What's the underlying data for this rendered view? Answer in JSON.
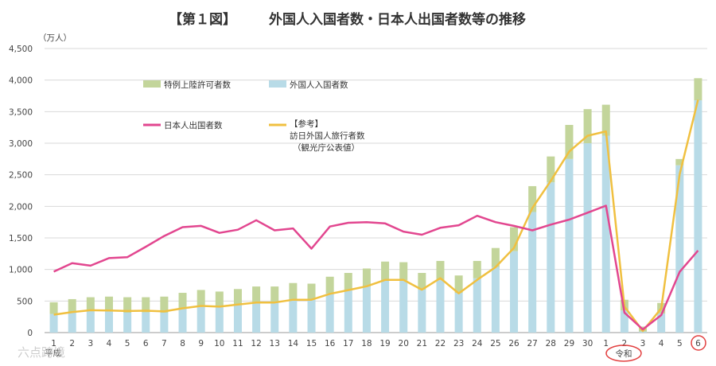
{
  "chart_data": {
    "type": "bar",
    "title_prefix": "【第１図】",
    "title": "外国人入国者数・日本人出国者数等の推移",
    "unit_label": "（万人）",
    "ylim": [
      0,
      4500
    ],
    "yticks": [
      "0",
      "500",
      "1,000",
      "1,500",
      "2,000",
      "2,500",
      "3,000",
      "3,500",
      "4,000",
      "4,500"
    ],
    "categories": [
      "1",
      "2",
      "3",
      "4",
      "5",
      "6",
      "7",
      "8",
      "9",
      "10",
      "11",
      "12",
      "13",
      "14",
      "15",
      "16",
      "17",
      "18",
      "19",
      "20",
      "21",
      "22",
      "23",
      "24",
      "25",
      "26",
      "27",
      "28",
      "29",
      "30",
      "1",
      "2",
      "3",
      "4",
      "5",
      "6"
    ],
    "era_labels": {
      "heisei": "平成",
      "reiwa": "令和"
    },
    "colors": {
      "foreign_entrants": "#b8dbe7",
      "special_landing": "#c3d59b",
      "japanese_departures": "#e2468f",
      "visitor_arrivals": "#f0c040",
      "highlight": "#e24040",
      "grid": "#d9d9d9"
    },
    "series": [
      {
        "name": "外国人入国者数",
        "kind": "bar",
        "values": [
          295,
          320,
          340,
          335,
          315,
          320,
          315,
          380,
          420,
          400,
          440,
          480,
          470,
          520,
          520,
          620,
          670,
          730,
          830,
          830,
          680,
          830,
          630,
          860,
          1040,
          1290,
          1910,
          2380,
          2750,
          3000,
          3120,
          350,
          15,
          300,
          2650,
          3680
        ]
      },
      {
        "name": "特例上陸許可者数",
        "kind": "bar_stack",
        "values": [
          185,
          210,
          220,
          235,
          245,
          240,
          255,
          250,
          255,
          250,
          250,
          250,
          260,
          265,
          255,
          265,
          275,
          285,
          295,
          285,
          265,
          305,
          275,
          275,
          300,
          380,
          410,
          410,
          540,
          540,
          490,
          170,
          80,
          170,
          100,
          350
        ]
      },
      {
        "name": "日本人出国者数",
        "kind": "line",
        "values": [
          966,
          1100,
          1060,
          1180,
          1195,
          1360,
          1530,
          1670,
          1690,
          1580,
          1630,
          1780,
          1620,
          1650,
          1330,
          1680,
          1740,
          1750,
          1730,
          1600,
          1550,
          1660,
          1700,
          1850,
          1750,
          1690,
          1620,
          1710,
          1790,
          1900,
          2010,
          317,
          51,
          277,
          962,
          1300
        ]
      },
      {
        "name": "【参考】",
        "name_line2": "訪日外国人旅行者数",
        "name_line3": "（観光庁公表値）",
        "kind": "line",
        "values": [
          284,
          324,
          354,
          351,
          341,
          347,
          335,
          384,
          422,
          411,
          444,
          477,
          477,
          521,
          521,
          614,
          673,
          733,
          835,
          835,
          679,
          862,
          622,
          836,
          1036,
          1341,
          1974,
          2404,
          2869,
          3119,
          3188,
          412,
          25,
          383,
          2507,
          3687
        ]
      }
    ]
  },
  "watermark": "六点跨境"
}
